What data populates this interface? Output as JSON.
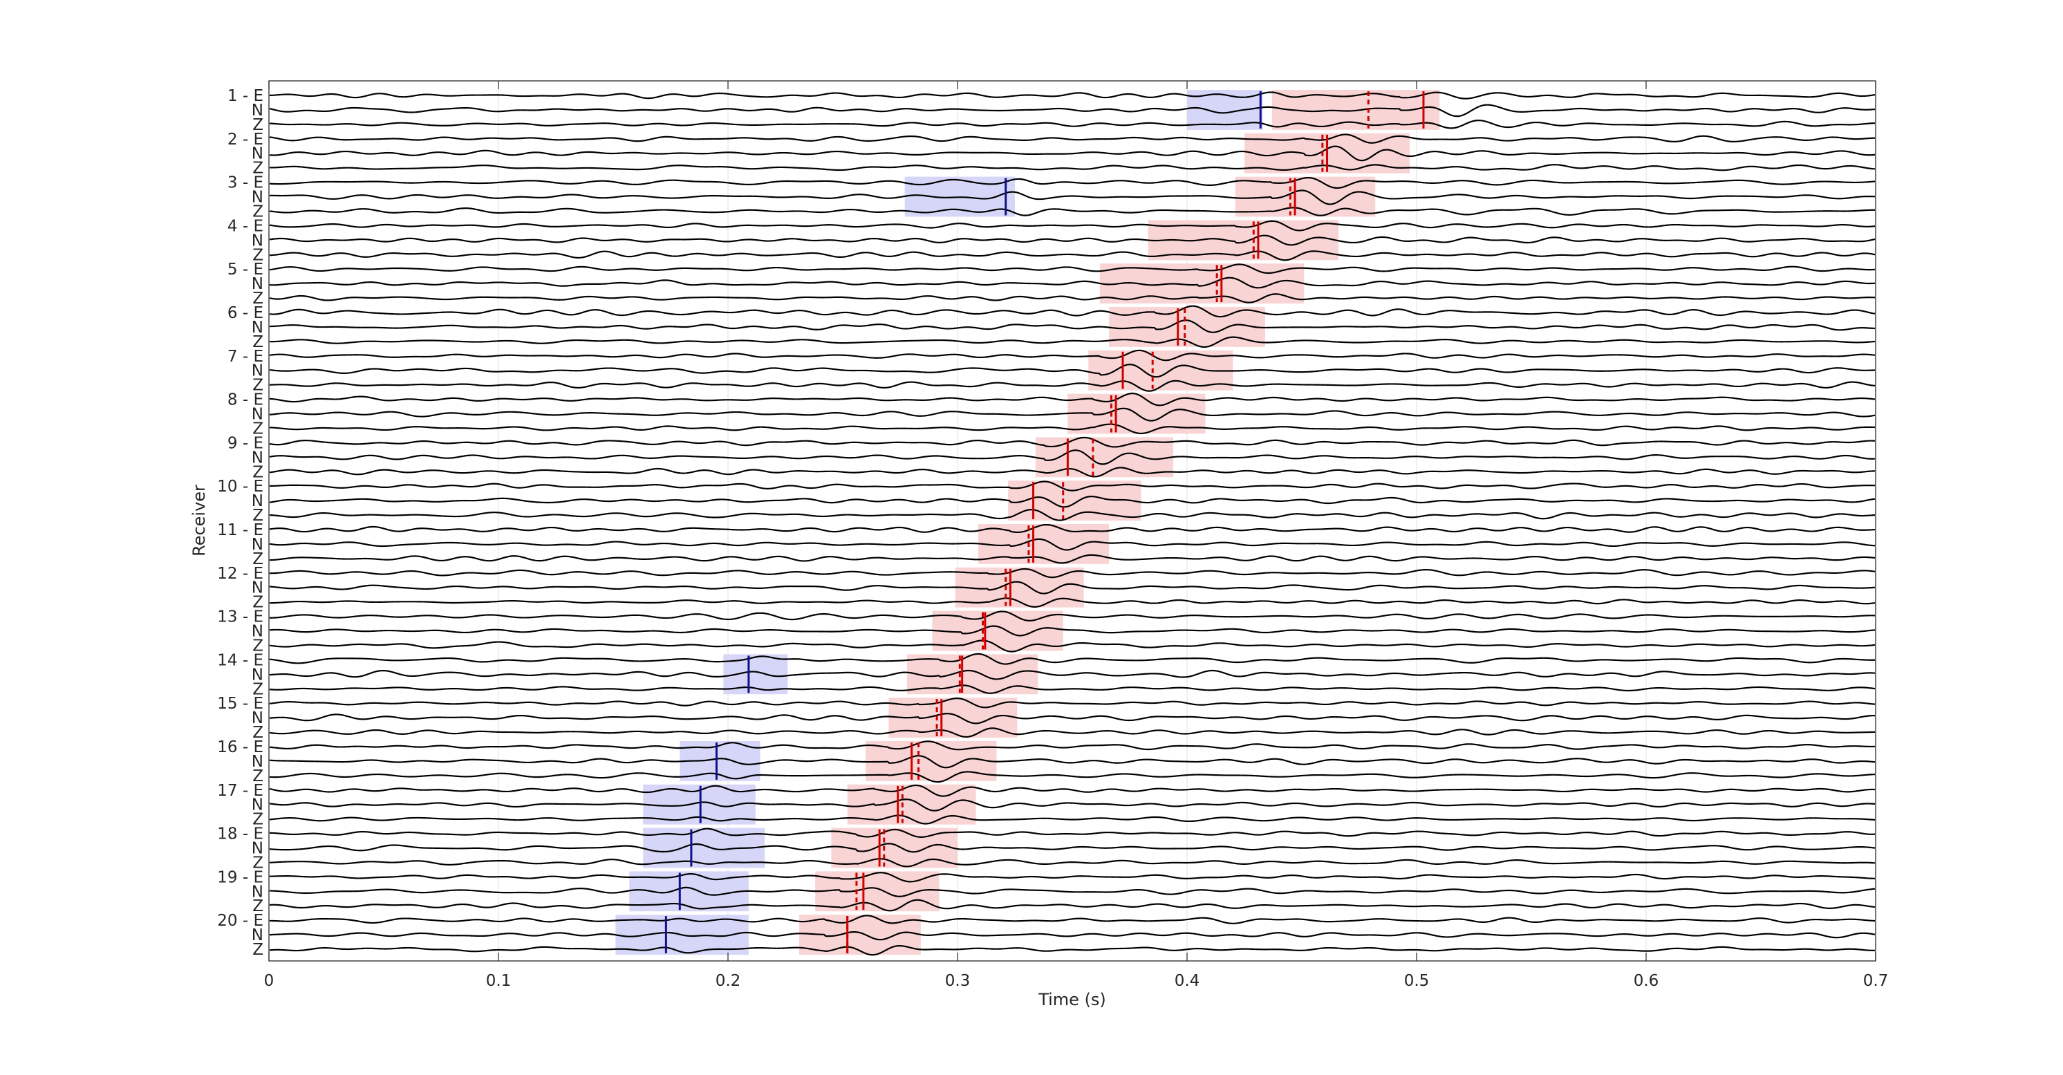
{
  "chart_data": {
    "type": "line",
    "title": "",
    "xlabel": "Time (s)",
    "ylabel": "Receiver",
    "xlim": [
      0,
      0.7
    ],
    "xticks": [
      0,
      0.1,
      0.2,
      0.3,
      0.4,
      0.5,
      0.6,
      0.7
    ],
    "xtick_labels": [
      "0",
      "0.1",
      "0.2",
      "0.3",
      "0.4",
      "0.5",
      "0.6",
      "0.7"
    ],
    "grid": true,
    "receivers": 20,
    "components": [
      "E",
      "N",
      "Z"
    ],
    "trace_labels": [
      "1 - E",
      "N",
      "Z",
      "2 - E",
      "N",
      "Z",
      "3 - E",
      "N",
      "Z",
      "4 - E",
      "N",
      "Z",
      "5 - E",
      "N",
      "Z",
      "6 - E",
      "N",
      "Z",
      "7 - E",
      "N",
      "Z",
      "8 - E",
      "N",
      "Z",
      "9 - E",
      "N",
      "Z",
      "10 - E",
      "N",
      "Z",
      "11 - E",
      "N",
      "Z",
      "12 - E",
      "N",
      "Z",
      "13 - E",
      "N",
      "Z",
      "14 - E",
      "N",
      "Z",
      "15 - E",
      "N",
      "Z",
      "16 - E",
      "N",
      "Z",
      "17 - E",
      "N",
      "Z",
      "18 - E",
      "N",
      "Z",
      "19 - E",
      "N",
      "Z",
      "20 - E",
      "N",
      "Z"
    ],
    "red_picks": [
      {
        "receiver": 1,
        "solid": 0.503,
        "dashed": 0.479
      },
      {
        "receiver": 2,
        "solid": 0.461,
        "dashed": 0.459
      },
      {
        "receiver": 3,
        "solid": 0.447,
        "dashed": 0.445
      },
      {
        "receiver": 4,
        "solid": 0.431,
        "dashed": 0.429
      },
      {
        "receiver": 5,
        "solid": 0.415,
        "dashed": 0.413
      },
      {
        "receiver": 6,
        "solid": 0.396,
        "dashed": 0.399
      },
      {
        "receiver": 7,
        "solid": 0.372,
        "dashed": 0.385
      },
      {
        "receiver": 8,
        "solid": 0.369,
        "dashed": 0.367
      },
      {
        "receiver": 9,
        "solid": 0.348,
        "dashed": 0.359
      },
      {
        "receiver": 10,
        "solid": 0.333,
        "dashed": 0.346
      },
      {
        "receiver": 11,
        "solid": 0.333,
        "dashed": 0.331
      },
      {
        "receiver": 12,
        "solid": 0.323,
        "dashed": 0.321
      },
      {
        "receiver": 13,
        "solid": 0.312,
        "dashed": 0.311
      },
      {
        "receiver": 14,
        "solid": 0.302,
        "dashed": 0.301
      },
      {
        "receiver": 15,
        "solid": 0.293,
        "dashed": 0.291
      },
      {
        "receiver": 16,
        "solid": 0.28,
        "dashed": 0.283
      },
      {
        "receiver": 17,
        "solid": 0.274,
        "dashed": 0.276
      },
      {
        "receiver": 18,
        "solid": 0.266,
        "dashed": 0.268
      },
      {
        "receiver": 19,
        "solid": 0.259,
        "dashed": 0.256
      },
      {
        "receiver": 20,
        "solid": 0.252,
        "dashed": 0.252
      }
    ],
    "red_windows": [
      {
        "receiver": 1,
        "start": 0.437,
        "end": 0.51
      },
      {
        "receiver": 2,
        "start": 0.425,
        "end": 0.497
      },
      {
        "receiver": 3,
        "start": 0.421,
        "end": 0.482
      },
      {
        "receiver": 4,
        "start": 0.383,
        "end": 0.466
      },
      {
        "receiver": 5,
        "start": 0.362,
        "end": 0.451
      },
      {
        "receiver": 6,
        "start": 0.366,
        "end": 0.434
      },
      {
        "receiver": 7,
        "start": 0.357,
        "end": 0.42
      },
      {
        "receiver": 8,
        "start": 0.348,
        "end": 0.408
      },
      {
        "receiver": 9,
        "start": 0.334,
        "end": 0.394
      },
      {
        "receiver": 10,
        "start": 0.322,
        "end": 0.38
      },
      {
        "receiver": 11,
        "start": 0.309,
        "end": 0.366
      },
      {
        "receiver": 12,
        "start": 0.299,
        "end": 0.355
      },
      {
        "receiver": 13,
        "start": 0.289,
        "end": 0.346
      },
      {
        "receiver": 14,
        "start": 0.278,
        "end": 0.335
      },
      {
        "receiver": 15,
        "start": 0.27,
        "end": 0.326
      },
      {
        "receiver": 16,
        "start": 0.26,
        "end": 0.317
      },
      {
        "receiver": 17,
        "start": 0.252,
        "end": 0.308
      },
      {
        "receiver": 18,
        "start": 0.245,
        "end": 0.3
      },
      {
        "receiver": 19,
        "start": 0.238,
        "end": 0.292
      },
      {
        "receiver": 20,
        "start": 0.231,
        "end": 0.284
      }
    ],
    "blue_picks": [
      {
        "receiver": 1,
        "time": 0.432
      },
      {
        "receiver": 3,
        "time": 0.321
      },
      {
        "receiver": 14,
        "time": 0.209
      },
      {
        "receiver": 16,
        "time": 0.195
      },
      {
        "receiver": 17,
        "time": 0.188
      },
      {
        "receiver": 18,
        "time": 0.184
      },
      {
        "receiver": 19,
        "time": 0.179
      },
      {
        "receiver": 20,
        "time": 0.173
      }
    ],
    "blue_windows": [
      {
        "receiver": 1,
        "start": 0.4,
        "end": 0.433
      },
      {
        "receiver": 3,
        "start": 0.277,
        "end": 0.325
      },
      {
        "receiver": 14,
        "start": 0.198,
        "end": 0.226
      },
      {
        "receiver": 16,
        "start": 0.179,
        "end": 0.214
      },
      {
        "receiver": 17,
        "start": 0.163,
        "end": 0.212
      },
      {
        "receiver": 18,
        "start": 0.163,
        "end": 0.216
      },
      {
        "receiver": 19,
        "start": 0.157,
        "end": 0.209
      },
      {
        "receiver": 20,
        "start": 0.151,
        "end": 0.209
      }
    ],
    "colors": {
      "trace": "#000000",
      "red_pick": "#d00000",
      "red_window": "#f9d2d2",
      "blue_pick": "#10108a",
      "blue_window": "#d6d6f8",
      "grid": "#e6e6e6",
      "axis": "#262626"
    }
  }
}
